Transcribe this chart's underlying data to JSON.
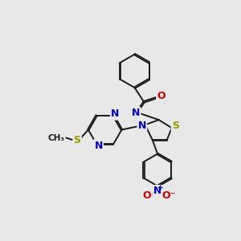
{
  "bg_color": "#e8e8e8",
  "bond_color": "#1a1a1a",
  "atom_colors": {
    "N": "#0000cc",
    "O": "#cc0000",
    "S": "#999900",
    "C": "#1a1a1a"
  },
  "figsize": [
    3.0,
    3.0
  ],
  "dpi": 100
}
